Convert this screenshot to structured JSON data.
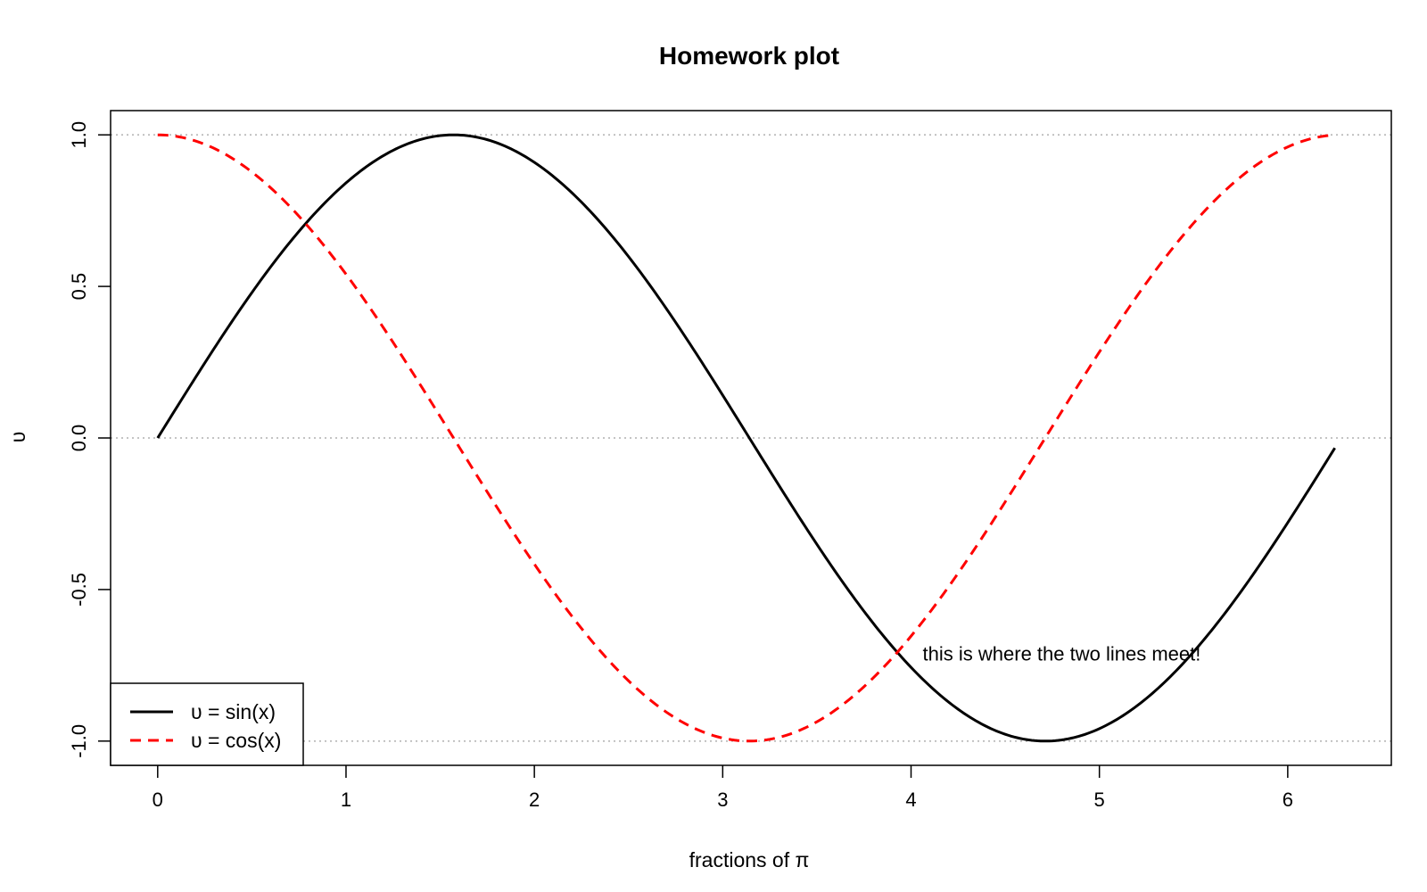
{
  "chart_data": {
    "type": "line",
    "title": "Homework plot",
    "xlabel": "fractions of π",
    "ylabel": "υ",
    "xlim": [
      -0.25,
      6.55
    ],
    "ylim": [
      -1.08,
      1.08
    ],
    "x_ticks": [
      "0",
      "1",
      "2",
      "3",
      "4",
      "5",
      "6"
    ],
    "y_ticks": [
      "-1.0",
      "-0.5",
      "0.0",
      "0.5",
      "1.0"
    ],
    "x_range": [
      0,
      6.25
    ],
    "reference_lines": [
      -1,
      0,
      1
    ],
    "series": [
      {
        "name": "υ = sin(x)",
        "function": "sin",
        "color": "#000000",
        "style": "solid"
      },
      {
        "name": "υ = cos(x)",
        "function": "cos",
        "color": "#ff0000",
        "style": "dashed"
      }
    ],
    "annotations": [
      {
        "text": "this is where the two lines meet!",
        "x": 4.8,
        "y": -0.71
      }
    ],
    "legend_position": "bottom-left",
    "grid": false
  }
}
